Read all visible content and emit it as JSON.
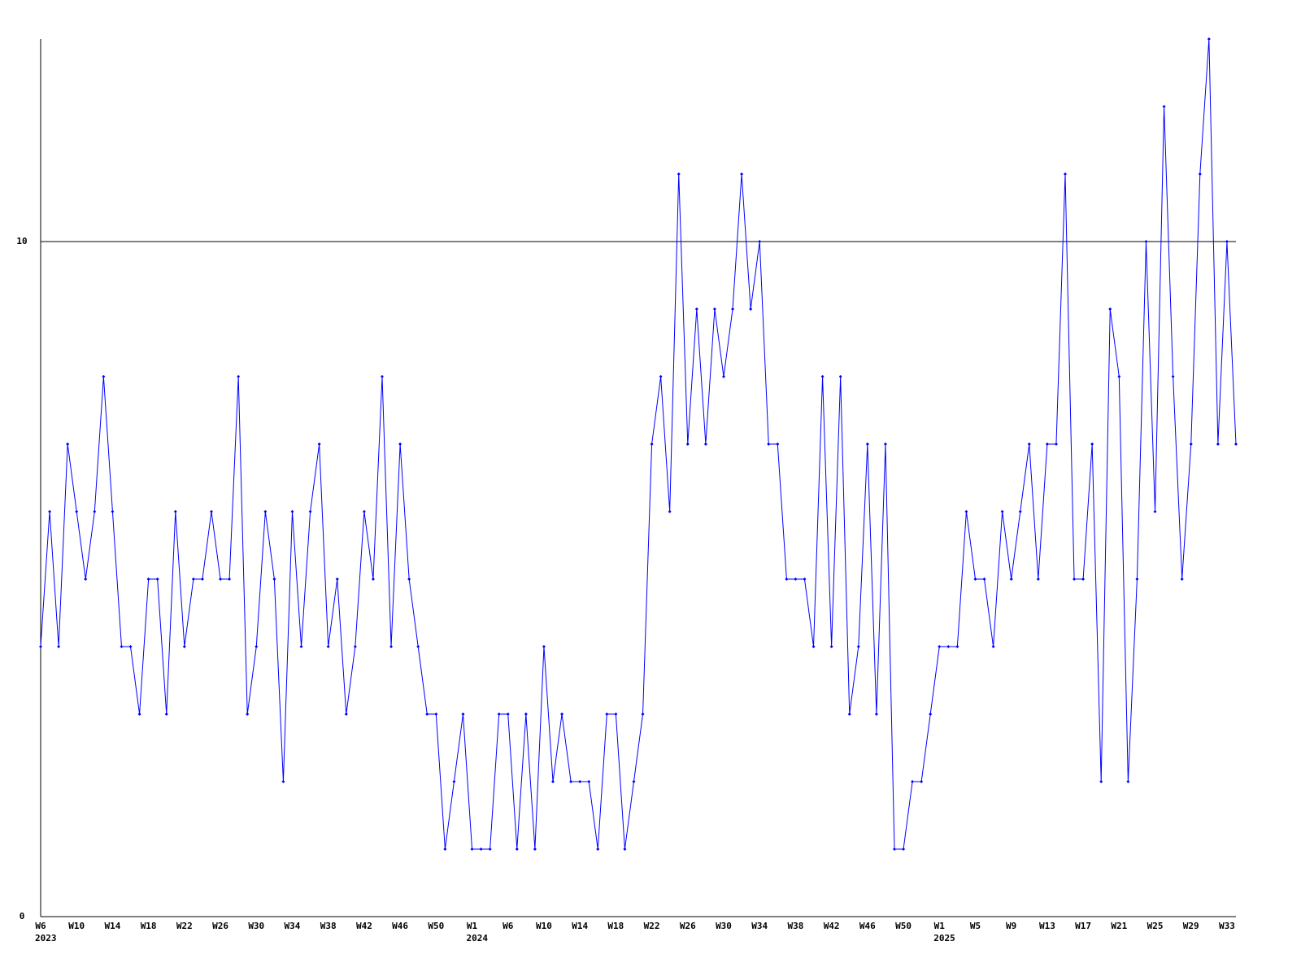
{
  "chart_data": {
    "type": "line",
    "categories": [
      "W6",
      null,
      null,
      null,
      "W10",
      null,
      null,
      null,
      "W14",
      null,
      null,
      null,
      "W18",
      null,
      null,
      null,
      "W22",
      null,
      null,
      null,
      "W26",
      null,
      null,
      null,
      "W30",
      null,
      null,
      null,
      "W34",
      null,
      null,
      null,
      "W38",
      null,
      null,
      null,
      "W42",
      null,
      null,
      null,
      "W46",
      null,
      null,
      null,
      "W50",
      null,
      null,
      null,
      "W1",
      null,
      null,
      null,
      "W6",
      null,
      null,
      null,
      "W10",
      null,
      null,
      null,
      "W14",
      null,
      null,
      null,
      "W18",
      null,
      null,
      null,
      "W22",
      null,
      null,
      null,
      "W26",
      null,
      null,
      null,
      "W30",
      null,
      null,
      null,
      "W34",
      null,
      null,
      null,
      "W38",
      null,
      null,
      null,
      "W42",
      null,
      null,
      null,
      "W46",
      null,
      null,
      null,
      "W50",
      null,
      null,
      null,
      "W1",
      null,
      null,
      null,
      "W5",
      null,
      null,
      null,
      "W9",
      null,
      null,
      null,
      "W13",
      null,
      null,
      null,
      "W17",
      null,
      null,
      null,
      "W21",
      null,
      null,
      null,
      "W25",
      null,
      null,
      null,
      "W29",
      null,
      null,
      null,
      "W33",
      null
    ],
    "year_labels": [
      "2023",
      null,
      null,
      null,
      null,
      null,
      null,
      null,
      null,
      null,
      null,
      null,
      null,
      null,
      null,
      null,
      null,
      null,
      null,
      null,
      null,
      null,
      null,
      null,
      null,
      null,
      null,
      null,
      null,
      null,
      null,
      null,
      null,
      null,
      null,
      null,
      null,
      null,
      null,
      null,
      null,
      null,
      null,
      null,
      null,
      null,
      null,
      null,
      "2024",
      null,
      null,
      null,
      null,
      null,
      null,
      null,
      null,
      null,
      null,
      null,
      null,
      null,
      null,
      null,
      null,
      null,
      null,
      null,
      null,
      null,
      null,
      null,
      null,
      null,
      null,
      null,
      null,
      null,
      null,
      null,
      null,
      null,
      null,
      null,
      null,
      null,
      null,
      null,
      null,
      null,
      null,
      null,
      null,
      null,
      null,
      null,
      null,
      null,
      null,
      null,
      "2025",
      null,
      null,
      null,
      null,
      null,
      null,
      null,
      null,
      null,
      null,
      null,
      null,
      null,
      null,
      null,
      null,
      null,
      null,
      null,
      null,
      null,
      null,
      null,
      null,
      null,
      null,
      null,
      null,
      null,
      null,
      null,
      null,
      null
    ],
    "series": [
      {
        "color": "#0000ff",
        "values": [
          4,
          6,
          4,
          7,
          6,
          5,
          6,
          8,
          6,
          4,
          4,
          3,
          5,
          5,
          3,
          6,
          4,
          5,
          5,
          6,
          5,
          5,
          8,
          3,
          4,
          6,
          5,
          2,
          6,
          4,
          6,
          7,
          4,
          5,
          3,
          4,
          6,
          5,
          8,
          4,
          7,
          5,
          4,
          3,
          3,
          1,
          2,
          3,
          1,
          1,
          1,
          3,
          3,
          1,
          3,
          1,
          4,
          2,
          3,
          2,
          2,
          2,
          1,
          3,
          3,
          1,
          2,
          3,
          7,
          8,
          6,
          11,
          7,
          9,
          7,
          9,
          8,
          9,
          11,
          9,
          10,
          7,
          7,
          5,
          5,
          5,
          4,
          8,
          4,
          8,
          3,
          4,
          7,
          3,
          7,
          1,
          1,
          2,
          2,
          3,
          4,
          4,
          4,
          6,
          5,
          5,
          4,
          6,
          5,
          6,
          7,
          5,
          7,
          7,
          11,
          5,
          5,
          7,
          2,
          9,
          8,
          2,
          5,
          10,
          6,
          12,
          8,
          5,
          7,
          11,
          13,
          7,
          10,
          7
        ]
      }
    ],
    "ylim": [
      0,
      13
    ],
    "yticks": [
      0,
      10
    ],
    "grid": true
  }
}
